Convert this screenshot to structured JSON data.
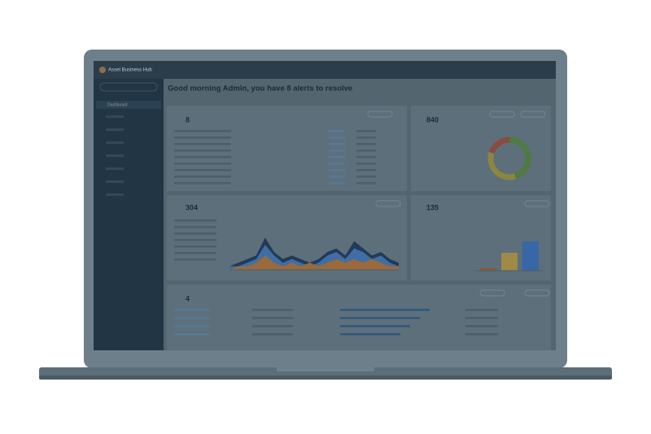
{
  "app": {
    "name": "Asset Business Hub"
  },
  "nav": {
    "items": [
      "Dashboard"
    ]
  },
  "greeting": "Good morning Admin, you have 8 alerts to resolve",
  "cards": [
    {
      "value": 8
    },
    {
      "value": 840
    },
    {
      "value": 304
    },
    {
      "value": 135
    },
    {
      "value": 4
    }
  ],
  "chart_data": [
    {
      "type": "pie",
      "donut": true,
      "categories": [
        null,
        null,
        null
      ],
      "values": [
        45,
        35,
        20
      ],
      "colors": [
        "#4f7a40",
        "#8c8640",
        "#8a4c3e"
      ]
    },
    {
      "type": "area",
      "categories": [
        null,
        null,
        null,
        null,
        null,
        null,
        null,
        null,
        null,
        null,
        null,
        null,
        null,
        null,
        null,
        null,
        null,
        null,
        null,
        null
      ],
      "ylim": [
        0,
        10
      ],
      "series": [
        {
          "color": "#223a58",
          "values": [
            1,
            2,
            3,
            4,
            9,
            5,
            3,
            4,
            3,
            2,
            3,
            5,
            6,
            4,
            8,
            6,
            4,
            5,
            3,
            2
          ]
        },
        {
          "color": "#3f6ea6",
          "values": [
            1,
            1,
            2,
            3,
            7,
            4,
            2,
            3,
            2,
            1,
            2,
            4,
            5,
            3,
            6,
            5,
            3,
            4,
            2,
            1
          ]
        },
        {
          "color": "#9a6a3c",
          "values": [
            0,
            1,
            1,
            2,
            4,
            2,
            1,
            2,
            1,
            2,
            1,
            2,
            3,
            2,
            3,
            2,
            3,
            2,
            1,
            1
          ]
        }
      ]
    },
    {
      "type": "bar",
      "categories": [
        null,
        null,
        null
      ],
      "values": [
        3,
        22,
        36
      ],
      "colors": [
        "#8a5a3a",
        "#a08a46",
        "#3767a6"
      ],
      "ylim": [
        0,
        40
      ]
    }
  ]
}
